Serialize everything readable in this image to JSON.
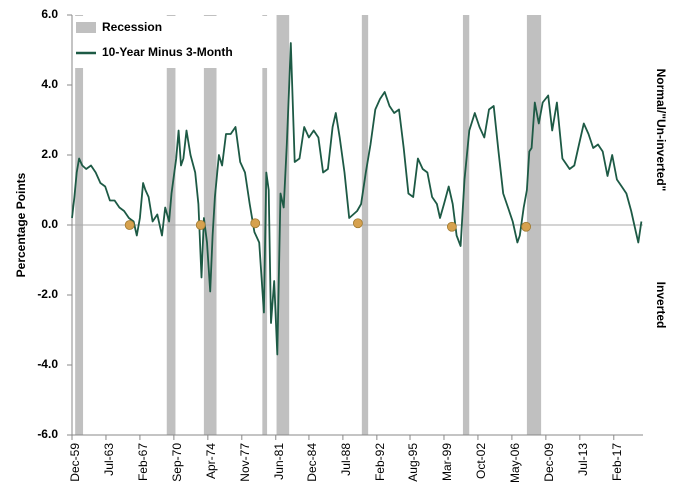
{
  "chart_data": {
    "type": "line",
    "ylabel": "Percentage Points",
    "annotations": [
      "Normal/\"Un-inverted\"",
      "Inverted"
    ],
    "xlim": [
      "1959-12",
      "2020-03"
    ],
    "xticks": [
      {
        "value": "1959-12",
        "label": "Dec-59"
      },
      {
        "value": "1963-07",
        "label": "Jul-63"
      },
      {
        "value": "1967-02",
        "label": "Feb-67"
      },
      {
        "value": "1970-09",
        "label": "Sep-70"
      },
      {
        "value": "1974-04",
        "label": "Apr-74"
      },
      {
        "value": "1977-11",
        "label": "Nov-77"
      },
      {
        "value": "1981-06",
        "label": "Jun-81"
      },
      {
        "value": "1984-12",
        "label": "Dec-84"
      },
      {
        "value": "1988-07",
        "label": "Jul-88"
      },
      {
        "value": "1992-02",
        "label": "Feb-92"
      },
      {
        "value": "1995-08",
        "label": "Aug-95"
      },
      {
        "value": "1999-03",
        "label": "Mar-99"
      },
      {
        "value": "2002-10",
        "label": "Oct-02"
      },
      {
        "value": "2006-05",
        "label": "May-06"
      },
      {
        "value": "2009-12",
        "label": "Dec-09"
      },
      {
        "value": "2013-07",
        "label": "Jul-13"
      },
      {
        "value": "2017-02",
        "label": "Feb-17"
      }
    ],
    "ylim": [
      -6,
      6
    ],
    "yticks": [
      {
        "value": 6,
        "label": "6.0"
      },
      {
        "value": 4,
        "label": "4.0"
      },
      {
        "value": 2,
        "label": "2.0"
      },
      {
        "value": 0,
        "label": "0.0"
      },
      {
        "value": -2,
        "label": "-2.0"
      },
      {
        "value": -4,
        "label": "-4.0"
      },
      {
        "value": -6,
        "label": "-6.0"
      }
    ],
    "recessions": {
      "name": "Recession",
      "color": "#c0c0c0",
      "periods": [
        [
          "1960-04",
          "1961-02"
        ],
        [
          "1969-12",
          "1970-11"
        ],
        [
          "1973-11",
          "1975-03"
        ],
        [
          "1980-01",
          "1980-07"
        ],
        [
          "1981-07",
          "1982-11"
        ],
        [
          "1990-07",
          "1991-03"
        ],
        [
          "2001-03",
          "2001-11"
        ],
        [
          "2007-12",
          "2009-06"
        ]
      ]
    },
    "series": [
      {
        "name": "10-Year Minus 3-Month",
        "color": "#1d5a45",
        "x": [
          "1959-12",
          "1960-03",
          "1960-06",
          "1960-09",
          "1961-01",
          "1961-06",
          "1961-12",
          "1962-06",
          "1962-12",
          "1963-06",
          "1963-12",
          "1964-06",
          "1964-12",
          "1965-06",
          "1965-12",
          "1966-06",
          "1966-10",
          "1967-02",
          "1967-06",
          "1967-09",
          "1968-01",
          "1968-06",
          "1968-12",
          "1969-06",
          "1969-10",
          "1970-03",
          "1970-06",
          "1970-12",
          "1971-03",
          "1971-06",
          "1971-09",
          "1972-01",
          "1972-06",
          "1972-12",
          "1973-04",
          "1973-08",
          "1973-11",
          "1974-03",
          "1974-07",
          "1974-10",
          "1975-01",
          "1975-06",
          "1975-10",
          "1976-03",
          "1976-09",
          "1977-03",
          "1977-09",
          "1978-03",
          "1978-09",
          "1979-03",
          "1979-09",
          "1980-03",
          "1980-06",
          "1980-09",
          "1980-12",
          "1981-04",
          "1981-08",
          "1981-12",
          "1982-04",
          "1982-08",
          "1982-11",
          "1983-01",
          "1983-06",
          "1983-12",
          "1984-06",
          "1984-12",
          "1985-06",
          "1985-12",
          "1986-06",
          "1986-12",
          "1987-06",
          "1987-10",
          "1988-03",
          "1988-09",
          "1989-03",
          "1989-08",
          "1990-01",
          "1990-06",
          "1990-12",
          "1991-06",
          "1991-12",
          "1992-06",
          "1992-12",
          "1993-06",
          "1993-12",
          "1994-06",
          "1994-12",
          "1995-06",
          "1995-12",
          "1996-06",
          "1996-12",
          "1997-06",
          "1997-12",
          "1998-06",
          "1998-10",
          "1999-03",
          "1999-09",
          "2000-02",
          "2000-07",
          "2000-12",
          "2001-05",
          "2001-11",
          "2002-06",
          "2002-12",
          "2003-06",
          "2003-12",
          "2004-06",
          "2004-12",
          "2005-06",
          "2005-12",
          "2006-06",
          "2006-12",
          "2007-03",
          "2007-08",
          "2007-12",
          "2008-03",
          "2008-06",
          "2008-10",
          "2009-03",
          "2009-08",
          "2010-03",
          "2010-08",
          "2011-02",
          "2011-09",
          "2012-06",
          "2012-12",
          "2013-06",
          "2013-12",
          "2014-06",
          "2014-12",
          "2015-06",
          "2015-12",
          "2016-06",
          "2016-12",
          "2017-06",
          "2017-12",
          "2018-06",
          "2018-12",
          "2019-06",
          "2019-09",
          "2020-01"
        ],
        "values": [
          0.2,
          0.8,
          1.5,
          1.9,
          1.7,
          1.6,
          1.7,
          1.5,
          1.2,
          1.1,
          0.7,
          0.7,
          0.5,
          0.4,
          0.2,
          0.1,
          -0.3,
          0.2,
          1.2,
          1.0,
          0.8,
          0.1,
          0.3,
          -0.3,
          0.5,
          0.1,
          0.9,
          1.9,
          2.7,
          1.7,
          1.9,
          2.7,
          2.0,
          1.5,
          0.6,
          -1.5,
          0.2,
          -0.5,
          -1.9,
          -0.3,
          0.8,
          2.0,
          1.7,
          2.6,
          2.6,
          2.8,
          1.8,
          1.5,
          0.6,
          -0.2,
          -0.5,
          -2.5,
          1.5,
          1.0,
          -2.8,
          -1.6,
          -3.7,
          0.9,
          0.5,
          2.3,
          4.0,
          5.2,
          1.8,
          1.9,
          2.8,
          2.5,
          2.7,
          2.5,
          1.5,
          1.6,
          2.8,
          3.2,
          2.5,
          1.5,
          0.2,
          0.3,
          0.4,
          0.6,
          1.5,
          2.3,
          3.3,
          3.6,
          3.8,
          3.4,
          3.2,
          3.3,
          2.2,
          0.9,
          0.8,
          1.9,
          1.6,
          1.5,
          0.8,
          0.6,
          0.2,
          0.6,
          1.1,
          0.6,
          -0.3,
          -0.6,
          1.3,
          2.7,
          3.2,
          2.8,
          2.5,
          3.3,
          3.4,
          2.1,
          0.9,
          0.5,
          0.1,
          -0.5,
          -0.3,
          0.5,
          1.0,
          2.1,
          2.2,
          3.5,
          2.9,
          3.5,
          3.7,
          2.7,
          3.5,
          1.9,
          1.6,
          1.7,
          2.3,
          2.9,
          2.6,
          2.2,
          2.3,
          2.1,
          1.4,
          2.0,
          1.3,
          1.1,
          0.9,
          0.4,
          -0.2,
          -0.5,
          0.1
        ]
      }
    ],
    "signals": {
      "color": "#d6a14e",
      "x": [
        "1966-01",
        "1973-07",
        "1979-04",
        "1990-02",
        "2000-01",
        "2007-11"
      ],
      "values": [
        0.0,
        0.0,
        0.05,
        0.05,
        -0.05,
        -0.05
      ]
    }
  }
}
